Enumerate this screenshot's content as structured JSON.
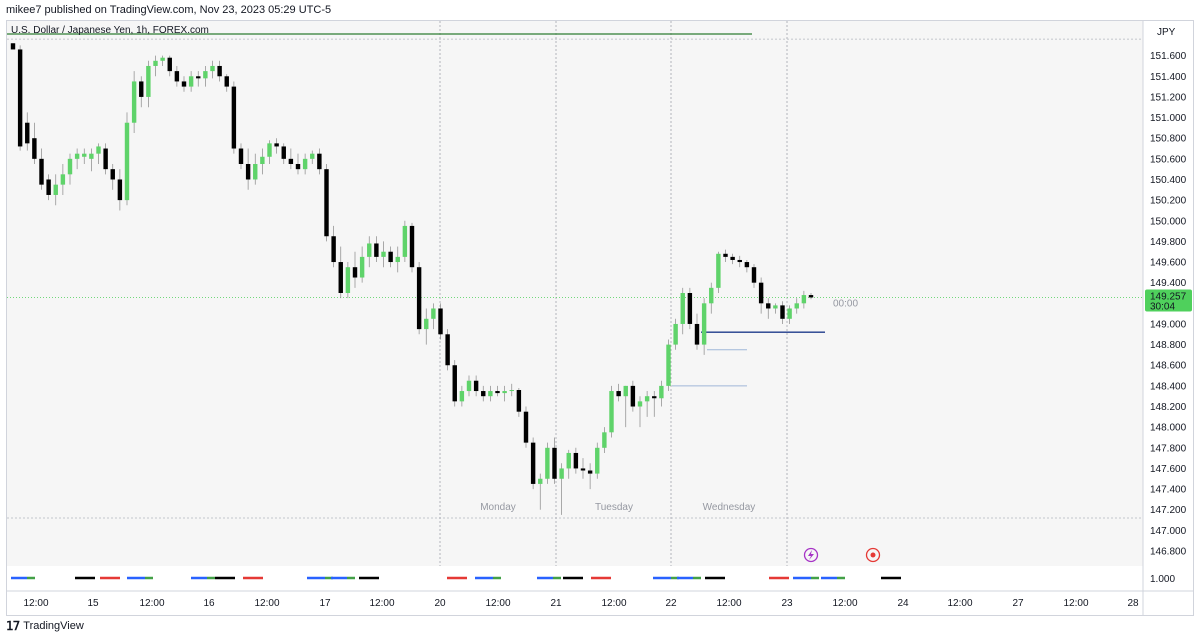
{
  "publish_bar": "mikee7 published on TradingView.com, Nov 23, 2023 05:29 UTC-5",
  "footer": {
    "brand": "TradingView"
  },
  "colors": {
    "up": "#5fd36a",
    "down": "#000000",
    "grid": "#a0a4ad",
    "green_line": "#2e7d32",
    "blue_line": "#1e3a8a",
    "light_blue": "#9fb7d8",
    "price_label_bg": "#4fd05c"
  },
  "icons": {
    "lightning": "lightning-icon",
    "target": "target-icon"
  },
  "chart_data": {
    "type": "candlestick",
    "title": "U.S. Dollar / Japanese Yen, 1h, FOREX.com",
    "currency": "JPY",
    "y_range": [
      146.8,
      151.8
    ],
    "y_ticks": [
      "151.600",
      "151.400",
      "151.200",
      "151.000",
      "150.800",
      "150.600",
      "150.400",
      "150.200",
      "150.000",
      "149.800",
      "149.600",
      "149.400",
      "149.000",
      "148.800",
      "148.600",
      "148.400",
      "148.200",
      "148.000",
      "147.800",
      "147.600",
      "147.400",
      "147.200",
      "147.000",
      "146.800"
    ],
    "x_ticks": [
      "12:00",
      "15",
      "12:00",
      "16",
      "12:00",
      "17",
      "12:00",
      "20",
      "12:00",
      "21",
      "12:00",
      "22",
      "12:00",
      "23",
      "12:00",
      "24",
      "12:00",
      "27",
      "12:00",
      "28"
    ],
    "day_labels": [
      "Monday",
      "Tuesday",
      "Wednesday"
    ],
    "current_price": "149.257",
    "countdown": "30:04",
    "session_label": "00:00",
    "indicator_value": "1.000",
    "candles": [
      [
        151.72,
        151.72,
        151.7,
        151.66
      ],
      [
        151.66,
        151.7,
        150.68,
        150.72
      ],
      [
        150.95,
        151.05,
        150.68,
        150.75
      ],
      [
        150.8,
        150.95,
        150.55,
        150.6
      ],
      [
        150.6,
        150.7,
        150.3,
        150.35
      ],
      [
        150.4,
        150.45,
        150.2,
        150.25
      ],
      [
        150.25,
        150.45,
        150.15,
        150.35
      ],
      [
        150.35,
        150.55,
        150.25,
        150.45
      ],
      [
        150.45,
        150.65,
        150.35,
        150.6
      ],
      [
        150.6,
        150.7,
        150.5,
        150.65
      ],
      [
        150.62,
        150.7,
        150.55,
        150.65
      ],
      [
        150.6,
        150.7,
        150.48,
        150.65
      ],
      [
        150.65,
        150.75,
        150.55,
        150.72
      ],
      [
        150.7,
        150.75,
        150.45,
        150.5
      ],
      [
        150.5,
        150.55,
        150.3,
        150.4
      ],
      [
        150.4,
        150.5,
        150.1,
        150.2
      ],
      [
        150.2,
        151.05,
        150.15,
        150.95
      ],
      [
        150.95,
        151.45,
        150.85,
        151.35
      ],
      [
        151.35,
        151.4,
        151.1,
        151.2
      ],
      [
        151.2,
        151.55,
        151.1,
        151.5
      ],
      [
        151.5,
        151.6,
        151.4,
        151.55
      ],
      [
        151.55,
        151.6,
        151.5,
        151.58
      ],
      [
        151.58,
        151.6,
        151.4,
        151.45
      ],
      [
        151.45,
        151.5,
        151.3,
        151.35
      ],
      [
        151.35,
        151.4,
        151.25,
        151.3
      ],
      [
        151.3,
        151.45,
        151.25,
        151.4
      ],
      [
        151.4,
        151.45,
        151.3,
        151.38
      ],
      [
        151.38,
        151.5,
        151.3,
        151.45
      ],
      [
        151.45,
        151.55,
        151.38,
        151.5
      ],
      [
        151.5,
        151.55,
        151.35,
        151.4
      ],
      [
        151.4,
        151.42,
        151.25,
        151.3
      ],
      [
        151.3,
        151.35,
        150.65,
        150.7
      ],
      [
        150.7,
        150.75,
        150.5,
        150.55
      ],
      [
        150.55,
        150.7,
        150.3,
        150.4
      ],
      [
        150.4,
        150.65,
        150.35,
        150.55
      ],
      [
        150.55,
        150.7,
        150.45,
        150.62
      ],
      [
        150.62,
        150.78,
        150.55,
        150.75
      ],
      [
        150.75,
        150.8,
        150.65,
        150.72
      ],
      [
        150.72,
        150.75,
        150.55,
        150.6
      ],
      [
        150.6,
        150.7,
        150.5,
        150.55
      ],
      [
        150.55,
        150.65,
        150.45,
        150.5
      ],
      [
        150.5,
        150.65,
        150.45,
        150.6
      ],
      [
        150.6,
        150.68,
        150.55,
        150.65
      ],
      [
        150.65,
        150.7,
        150.45,
        150.5
      ],
      [
        150.5,
        150.55,
        149.8,
        149.85
      ],
      [
        149.85,
        149.95,
        149.55,
        149.6
      ],
      [
        149.6,
        149.75,
        149.25,
        149.3
      ],
      [
        149.3,
        149.6,
        149.25,
        149.55
      ],
      [
        149.55,
        149.7,
        149.35,
        149.45
      ],
      [
        149.45,
        149.75,
        149.4,
        149.65
      ],
      [
        149.65,
        149.85,
        149.55,
        149.78
      ],
      [
        149.78,
        149.85,
        149.6,
        149.65
      ],
      [
        149.65,
        149.8,
        149.55,
        149.7
      ],
      [
        149.7,
        149.75,
        149.55,
        149.6
      ],
      [
        149.6,
        149.75,
        149.5,
        149.65
      ],
      [
        149.65,
        150.0,
        149.6,
        149.95
      ],
      [
        149.95,
        149.98,
        149.5,
        149.55
      ],
      [
        149.55,
        149.6,
        148.9,
        148.95
      ],
      [
        148.95,
        149.15,
        148.8,
        149.05
      ],
      [
        149.05,
        149.2,
        148.95,
        149.15
      ],
      [
        149.15,
        149.2,
        148.85,
        148.9
      ],
      [
        148.9,
        148.95,
        148.55,
        148.6
      ],
      [
        148.6,
        148.65,
        148.2,
        148.25
      ],
      [
        148.25,
        148.4,
        148.2,
        148.35
      ],
      [
        148.35,
        148.5,
        148.3,
        148.45
      ],
      [
        148.45,
        148.5,
        148.3,
        148.35
      ],
      [
        148.35,
        148.4,
        148.25,
        148.3
      ],
      [
        148.3,
        148.4,
        148.25,
        148.35
      ],
      [
        148.35,
        148.4,
        148.3,
        148.33
      ],
      [
        148.33,
        148.4,
        148.25,
        148.35
      ],
      [
        148.35,
        148.42,
        148.3,
        148.36
      ],
      [
        148.36,
        148.38,
        148.1,
        148.15
      ],
      [
        148.15,
        148.2,
        147.8,
        147.85
      ],
      [
        147.85,
        147.9,
        147.4,
        147.45
      ],
      [
        147.45,
        147.55,
        147.2,
        147.5
      ],
      [
        147.5,
        147.85,
        147.45,
        147.8
      ],
      [
        147.8,
        147.9,
        147.45,
        147.5
      ],
      [
        147.5,
        147.65,
        147.15,
        147.6
      ],
      [
        147.6,
        147.78,
        147.5,
        147.75
      ],
      [
        147.75,
        147.8,
        147.55,
        147.6
      ],
      [
        147.6,
        147.7,
        147.5,
        147.58
      ],
      [
        147.58,
        147.65,
        147.4,
        147.55
      ],
      [
        147.55,
        147.85,
        147.5,
        147.8
      ],
      [
        147.8,
        148.0,
        147.75,
        147.95
      ],
      [
        147.95,
        148.4,
        147.9,
        148.35
      ],
      [
        148.35,
        148.42,
        148.25,
        148.3
      ],
      [
        148.3,
        148.4,
        148.0,
        148.4
      ],
      [
        148.4,
        148.45,
        148.15,
        148.2
      ],
      [
        148.2,
        148.3,
        148.0,
        148.25
      ],
      [
        148.25,
        148.35,
        148.1,
        148.3
      ],
      [
        148.3,
        148.35,
        148.1,
        148.28
      ],
      [
        148.28,
        148.45,
        148.2,
        148.4
      ],
      [
        148.4,
        148.85,
        148.35,
        148.8
      ],
      [
        148.8,
        149.05,
        148.75,
        149.0
      ],
      [
        149.0,
        149.35,
        148.9,
        149.3
      ],
      [
        149.3,
        149.35,
        148.95,
        149.0
      ],
      [
        149.0,
        149.1,
        148.75,
        148.8
      ],
      [
        148.8,
        149.25,
        148.7,
        149.2
      ],
      [
        149.2,
        149.4,
        149.1,
        149.35
      ],
      [
        149.35,
        149.7,
        149.3,
        149.68
      ],
      [
        149.68,
        149.72,
        149.6,
        149.65
      ],
      [
        149.65,
        149.68,
        149.58,
        149.62
      ],
      [
        149.62,
        149.66,
        149.55,
        149.6
      ],
      [
        149.6,
        149.62,
        149.5,
        149.55
      ],
      [
        149.55,
        149.58,
        149.35,
        149.4
      ],
      [
        149.4,
        149.45,
        149.1,
        149.2
      ],
      [
        149.2,
        149.25,
        149.05,
        149.15
      ],
      [
        149.15,
        149.2,
        149.1,
        149.18
      ],
      [
        149.18,
        149.22,
        149.0,
        149.05
      ],
      [
        149.05,
        149.18,
        149.0,
        149.15
      ],
      [
        149.15,
        149.25,
        149.1,
        149.2
      ],
      [
        149.2,
        149.32,
        149.15,
        149.28
      ],
      [
        149.28,
        149.3,
        149.24,
        149.257
      ]
    ],
    "overlays": [
      {
        "name": "green-resistance-line",
        "price": 151.8
      },
      {
        "name": "blue-support-line",
        "price": 148.92
      },
      {
        "name": "light-blue-line-upper",
        "price": 148.75
      },
      {
        "name": "light-blue-line-lower",
        "price": 148.4
      }
    ]
  }
}
